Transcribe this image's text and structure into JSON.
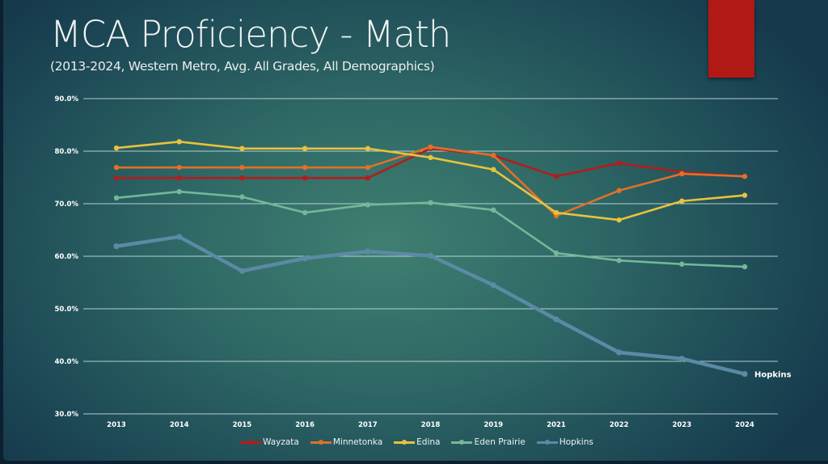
{
  "slide": {
    "accent_color": "#b11917"
  },
  "chart_data": {
    "type": "line",
    "title": "MCA Proficiency - Math",
    "subtitle": "(2013-2024, Western Metro, Avg. All Grades, All Demographics)",
    "xlabel": "",
    "ylabel": "",
    "categories": [
      "2013",
      "2014",
      "2015",
      "2016",
      "2017",
      "2018",
      "2019",
      "2021",
      "2022",
      "2023",
      "2024"
    ],
    "ylim": [
      30,
      90
    ],
    "yticks": [
      30,
      40,
      50,
      60,
      70,
      80,
      90
    ],
    "ytick_labels": [
      "30.0%",
      "40.0%",
      "50.0%",
      "60.0%",
      "70.0%",
      "80.0%",
      "90.0%"
    ],
    "grid": true,
    "legend_position": "bottom",
    "series": [
      {
        "name": "Wayzata",
        "color": "#b51c1c",
        "values": [
          74.9,
          74.9,
          74.9,
          74.9,
          74.9,
          80.5,
          79.2,
          75.2,
          77.7,
          76.0,
          75.2
        ]
      },
      {
        "name": "Minnetonka",
        "color": "#e0702a",
        "values": [
          76.9,
          76.9,
          76.9,
          76.9,
          76.9,
          80.8,
          79.2,
          67.7,
          72.5,
          75.7,
          75.2
        ]
      },
      {
        "name": "Edina",
        "color": "#e9c23c",
        "values": [
          80.6,
          81.8,
          80.5,
          80.5,
          80.5,
          78.8,
          76.5,
          68.3,
          66.9,
          70.5,
          71.6
        ]
      },
      {
        "name": "Eden Prairie",
        "color": "#74b899",
        "values": [
          71.1,
          72.3,
          71.3,
          68.3,
          69.8,
          70.2,
          68.8,
          60.6,
          59.2,
          58.5,
          58.0
        ]
      },
      {
        "name": "Hopkins",
        "color": "#5b8aa6",
        "values": [
          61.9,
          63.7,
          57.2,
          59.6,
          60.9,
          60.1,
          54.5,
          48.0,
          41.7,
          40.5,
          37.6
        ]
      }
    ],
    "annotations": [
      {
        "text": "Hopkins",
        "series": "Hopkins",
        "category": "2024"
      }
    ]
  }
}
